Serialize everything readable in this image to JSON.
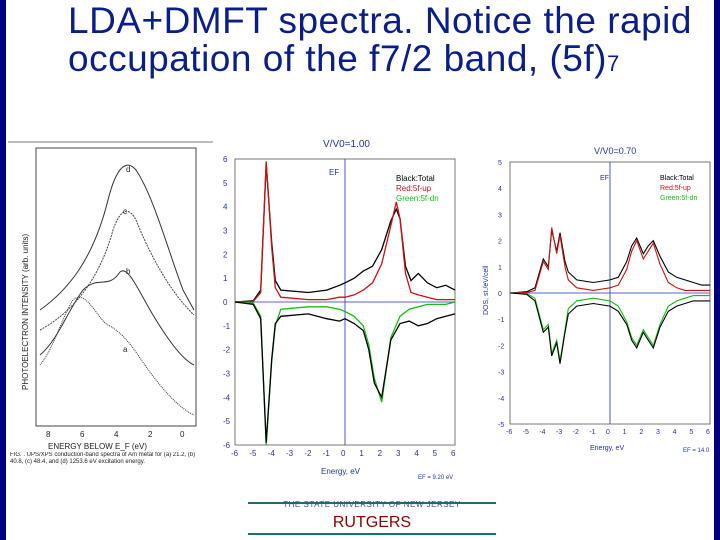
{
  "slide": {
    "title_main": "LDA+DMFT spectra. Notice the rapid occupation of the f7/2 band, (5f)",
    "title_sup": "7",
    "footer_university": "THE STATE UNIVERSITY OF NEW JERSEY",
    "footer_rutgers": "RUTGERS",
    "colors": {
      "title": "#0a1e8a",
      "side_bars": "#000080",
      "rutgers": "#8b0000"
    }
  },
  "figure_left": {
    "ylabel": "PHOTOELECTRON INTENSITY (arb. units)",
    "xlabel": "ENERGY BELOW E_F (eV)",
    "xticks": [
      "8",
      "6",
      "4",
      "2",
      "0"
    ],
    "curve_labels": [
      "d",
      "c",
      "b",
      "a"
    ],
    "caption": "FIG. . UPS/XPS conduction-band spectra of Am metal for (a) 21.2, (b) 40.8, (c) 48.4, and (d) 1253.6 eV excitation energy."
  },
  "chart_data": [
    {
      "type": "line",
      "title": "V/V0=1.00",
      "xlabel": "Energy, eV",
      "ylabel": "",
      "xlim": [
        -6,
        6
      ],
      "ylim": [
        -6,
        6
      ],
      "xticks": [
        "-6",
        "-5",
        "-4",
        "-3",
        "-2",
        "-1",
        "0",
        "1",
        "2",
        "3",
        "4",
        "5",
        "6"
      ],
      "yticks": [
        "6",
        "5",
        "4",
        "3",
        "2",
        "1",
        "0",
        "-1",
        "-2",
        "-3",
        "-4",
        "-5",
        "-6"
      ],
      "ef_label": "EF",
      "ef_value_text": "EF = 9.20 eV",
      "legend": [
        "Black:Total",
        "Red:5f-up",
        "Green:5f-dn"
      ],
      "series": [
        {
          "name": "Black:Total",
          "color": "#000000",
          "x": [
            -6,
            -5,
            -4.6,
            -4.3,
            -4,
            -3.8,
            -3.5,
            -2,
            -1,
            -0.3,
            0,
            0.5,
            1,
            1.5,
            2,
            2.5,
            2.8,
            3,
            3.3,
            3.6,
            4,
            4.5,
            5,
            5.5,
            6
          ],
          "y": [
            0,
            0.05,
            0.5,
            5.8,
            2.5,
            0.9,
            0.5,
            0.4,
            0.5,
            0.7,
            0.8,
            1.0,
            1.3,
            1.5,
            2.2,
            3.4,
            3.9,
            3.5,
            1.5,
            0.9,
            1.2,
            0.8,
            0.6,
            0.7,
            0.5
          ]
        },
        {
          "name": "Red:5f-up",
          "color": "#d01010",
          "x": [
            -6,
            -5,
            -4.6,
            -4.3,
            -4,
            -3.8,
            -3.5,
            -2,
            -1,
            -0.3,
            0,
            0.5,
            1,
            1.5,
            2,
            2.5,
            2.8,
            3,
            3.3,
            3.6,
            4,
            4.5,
            5,
            5.5,
            6
          ],
          "y": [
            0,
            0.02,
            0.4,
            5.9,
            2.3,
            0.6,
            0.2,
            0.1,
            0.1,
            0.2,
            0.2,
            0.3,
            0.5,
            0.8,
            1.6,
            3.2,
            4.2,
            3.5,
            1.2,
            0.4,
            0.3,
            0.2,
            0.1,
            0.1,
            0.1
          ]
        },
        {
          "name": "Green:5f-dn",
          "color": "#10c010",
          "x": [
            -6,
            -5,
            -4.6,
            -4.3,
            -4,
            -3.8,
            -3.5,
            -2,
            -1,
            -0.3,
            0,
            0.5,
            1,
            1.3,
            1.6,
            2,
            2.5,
            3,
            3.5,
            4,
            4.5,
            5,
            5.5,
            6
          ],
          "y": [
            0,
            -0.05,
            -0.6,
            -6.0,
            -2.5,
            -1.0,
            -0.3,
            -0.2,
            -0.2,
            -0.3,
            -0.4,
            -0.6,
            -1.0,
            -1.8,
            -3.2,
            -4.2,
            -1.5,
            -0.6,
            -0.3,
            -0.2,
            -0.1,
            -0.1,
            -0.1,
            0
          ]
        },
        {
          "name": "Black:Total (down)",
          "color": "#000000",
          "x": [
            -6,
            -5,
            -4.6,
            -4.3,
            -4,
            -3.8,
            -3.5,
            -2,
            -1,
            -0.3,
            0,
            0.5,
            1,
            1.3,
            1.6,
            2,
            2.5,
            3,
            3.5,
            4,
            4.5,
            5,
            5.5,
            6
          ],
          "y": [
            0,
            -0.1,
            -0.7,
            -5.9,
            -2.4,
            -0.9,
            -0.6,
            -0.5,
            -0.7,
            -0.8,
            -0.7,
            -0.9,
            -1.2,
            -2.0,
            -3.4,
            -4.0,
            -1.6,
            -0.9,
            -0.8,
            -1.0,
            -0.9,
            -0.7,
            -0.6,
            -0.5
          ]
        }
      ]
    },
    {
      "type": "line",
      "title": "V/V0=0.70",
      "xlabel": "Energy, eV",
      "ylabel": "DOS, st./eV/cell",
      "xlim": [
        -6,
        6
      ],
      "ylim": [
        -5,
        5
      ],
      "xticks": [
        "-6",
        "-5",
        "-4",
        "-3",
        "-2",
        "-1",
        "0",
        "1",
        "2",
        "3",
        "4",
        "5",
        "6"
      ],
      "yticks": [
        "5",
        "4",
        "3",
        "2",
        "1",
        "0",
        "-1",
        "-2",
        "-3",
        "-4",
        "-5"
      ],
      "ef_label": "EF",
      "ef_value_text": "EF = 14.0",
      "legend": [
        "Black:Total",
        "Red:5f-up",
        "Green:5f-dn"
      ],
      "series": [
        {
          "name": "Black:Total",
          "color": "#000000",
          "x": [
            -6,
            -5,
            -4.5,
            -4,
            -3.7,
            -3.5,
            -3.2,
            -3,
            -2.7,
            -2.5,
            -2,
            -1,
            0,
            0.5,
            1,
            1.3,
            1.6,
            2,
            2.3,
            2.6,
            3,
            3.5,
            4,
            4.5,
            5,
            5.5,
            6
          ],
          "y": [
            0,
            0.05,
            0.2,
            1.3,
            1.0,
            2.4,
            1.6,
            2.3,
            1.2,
            0.8,
            0.5,
            0.4,
            0.5,
            0.6,
            1.2,
            1.8,
            2.1,
            1.5,
            1.8,
            2.0,
            1.4,
            0.8,
            0.6,
            0.5,
            0.4,
            0.3,
            0.3
          ]
        },
        {
          "name": "Red:5f-up",
          "color": "#d01010",
          "x": [
            -6,
            -5,
            -4.5,
            -4,
            -3.7,
            -3.5,
            -3.2,
            -3,
            -2.7,
            -2.5,
            -2,
            -1,
            0,
            0.5,
            1,
            1.3,
            1.6,
            2,
            2.3,
            2.6,
            3,
            3.5,
            4,
            4.5,
            5,
            5.5,
            6
          ],
          "y": [
            0,
            0.02,
            0.1,
            1.2,
            0.9,
            2.5,
            1.5,
            2.2,
            1.0,
            0.5,
            0.2,
            0.1,
            0.2,
            0.3,
            0.9,
            1.6,
            2.0,
            1.3,
            1.6,
            1.9,
            1.1,
            0.4,
            0.2,
            0.1,
            0.1,
            0.1,
            0.1
          ]
        },
        {
          "name": "Green:5f-dn",
          "color": "#10c010",
          "x": [
            -6,
            -5,
            -4.5,
            -4,
            -3.7,
            -3.5,
            -3.2,
            -3,
            -2.7,
            -2.5,
            -2,
            -1,
            0,
            0.5,
            1,
            1.3,
            1.6,
            2,
            2.3,
            2.6,
            3,
            3.5,
            4,
            4.5,
            5,
            5.5,
            6
          ],
          "y": [
            0,
            -0.02,
            -0.2,
            -1.4,
            -1.2,
            -2.3,
            -1.8,
            -2.6,
            -1.4,
            -0.6,
            -0.3,
            -0.2,
            -0.3,
            -0.5,
            -1.1,
            -1.7,
            -2.0,
            -1.4,
            -1.7,
            -2.0,
            -1.2,
            -0.5,
            -0.3,
            -0.2,
            -0.1,
            -0.1,
            -0.1
          ]
        },
        {
          "name": "Black:Total (down)",
          "color": "#000000",
          "x": [
            -6,
            -5,
            -4.5,
            -4,
            -3.7,
            -3.5,
            -3.2,
            -3,
            -2.7,
            -2.5,
            -2,
            -1,
            0,
            0.5,
            1,
            1.3,
            1.6,
            2,
            2.3,
            2.6,
            3,
            3.5,
            4,
            4.5,
            5,
            5.5,
            6
          ],
          "y": [
            0,
            -0.05,
            -0.3,
            -1.5,
            -1.3,
            -2.4,
            -1.9,
            -2.7,
            -1.5,
            -0.8,
            -0.5,
            -0.4,
            -0.5,
            -0.7,
            -1.2,
            -1.8,
            -2.1,
            -1.5,
            -1.8,
            -2.1,
            -1.3,
            -0.7,
            -0.5,
            -0.4,
            -0.3,
            -0.3,
            -0.3
          ]
        }
      ]
    }
  ]
}
